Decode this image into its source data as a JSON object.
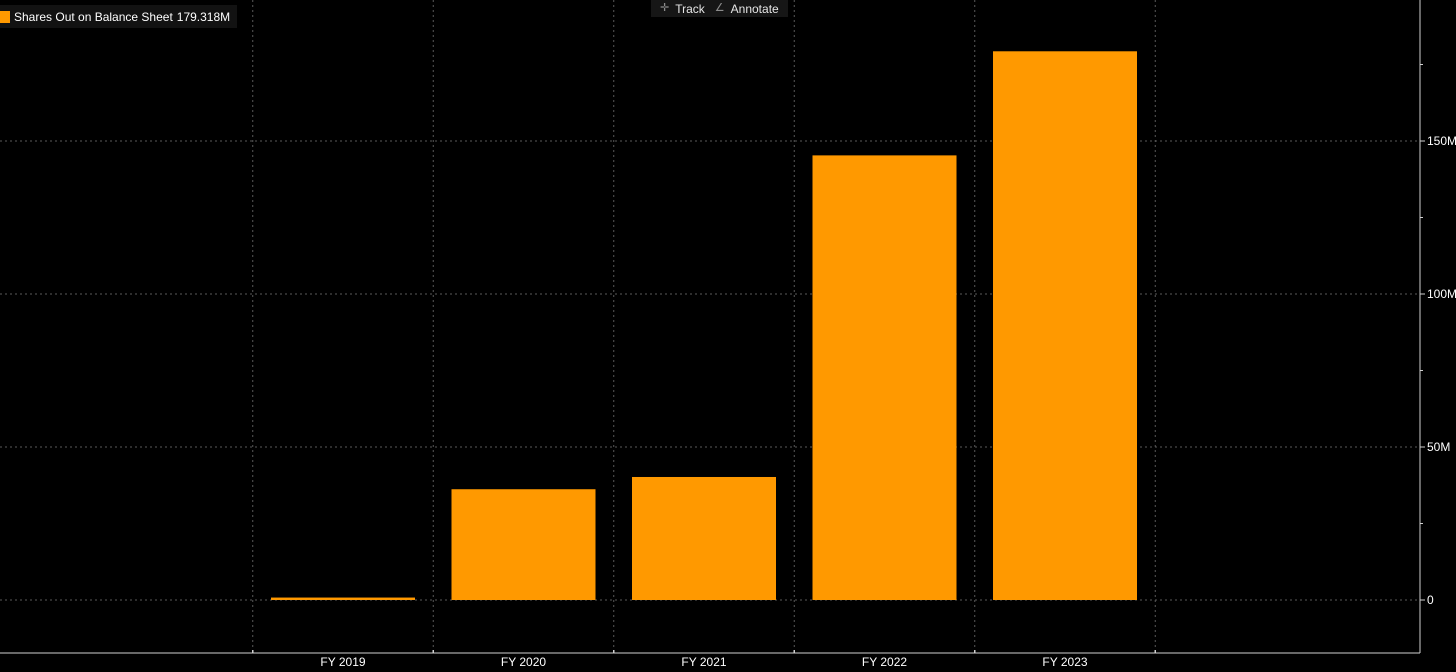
{
  "legend": {
    "series_label": "Shares Out on Balance Sheet",
    "last_value": "179.318M",
    "swatch_color": "#ff9900"
  },
  "toolbar": {
    "track": {
      "label": "Track",
      "icon": "crosshair-icon"
    },
    "annotate": {
      "label": "Annotate",
      "icon": "pencil-line-icon"
    }
  },
  "colors": {
    "background": "#000000",
    "bar": "#ff9900",
    "grid": "#5a5a5a",
    "axis": "#d0d0d0",
    "text": "#ffffff"
  },
  "chart_data": {
    "type": "bar",
    "categories": [
      "FY 2019",
      "FY 2020",
      "FY 2021",
      "FY 2022",
      "FY 2023"
    ],
    "series": [
      {
        "name": "Shares Out on Balance Sheet",
        "values": [
          0.8,
          36.2,
          40.2,
          145.3,
          179.318
        ]
      }
    ],
    "unit": "M",
    "ylim": [
      -15,
      195
    ],
    "y_ticks": [
      0,
      50,
      100,
      150
    ],
    "y_tick_labels": [
      "0",
      "50M",
      "100M",
      "150M"
    ],
    "y_minor_ticks": [
      25,
      75,
      125,
      175
    ],
    "x_grid_years": [
      2018.5,
      2019.5,
      2020.5,
      2021.5,
      2022.5,
      2023.5
    ],
    "grid": true,
    "legend_position": "top-left"
  }
}
